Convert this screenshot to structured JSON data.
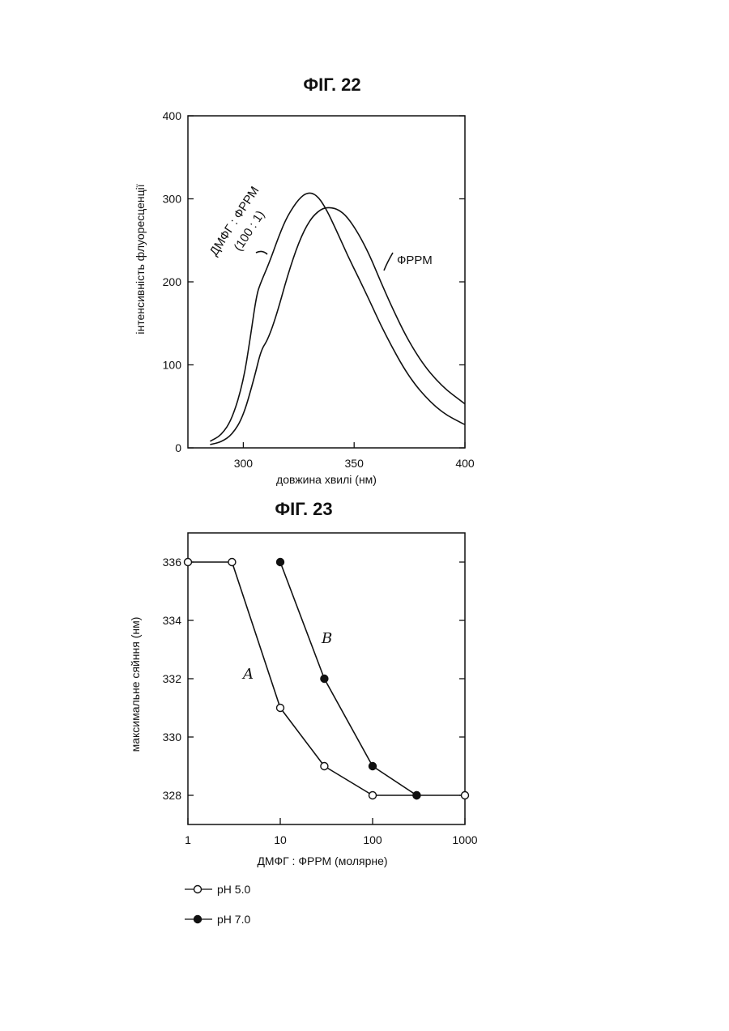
{
  "chart_data": [
    {
      "type": "line",
      "title": "ФІГ. 22",
      "xlabel": "довжина хвилі (нм)",
      "ylabel": "інтенсивність флуоресценції",
      "xlim": [
        275,
        400
      ],
      "ylim": [
        0,
        400
      ],
      "x_ticks": [
        300,
        350,
        400
      ],
      "y_ticks": [
        0,
        100,
        200,
        300,
        400
      ],
      "grid": false,
      "series": [
        {
          "name": "ДМФГ : ФРРМ (100 : 1)",
          "name_line1": "ДМФГ : ФРРМ",
          "name_line2": "(100 : 1)",
          "x": [
            285,
            290,
            295,
            300,
            303,
            306,
            308,
            312,
            316,
            320,
            325,
            329,
            333,
            337,
            342,
            347,
            352,
            357,
            362,
            367,
            372,
            377,
            382,
            387,
            392,
            397,
            400
          ],
          "y": [
            8,
            15,
            35,
            80,
            130,
            185,
            200,
            225,
            255,
            280,
            300,
            308,
            305,
            290,
            262,
            232,
            205,
            177,
            148,
            122,
            98,
            78,
            62,
            49,
            39,
            32,
            28
          ]
        },
        {
          "name": "ФРРМ",
          "x": [
            285,
            290,
            295,
            300,
            305,
            308,
            311,
            315,
            320,
            325,
            330,
            335,
            339,
            343,
            347,
            352,
            357,
            362,
            367,
            372,
            377,
            382,
            387,
            392,
            397,
            400
          ],
          "y": [
            4,
            7,
            16,
            38,
            85,
            118,
            130,
            160,
            208,
            248,
            275,
            288,
            290,
            287,
            278,
            258,
            232,
            200,
            170,
            142,
            118,
            98,
            82,
            69,
            59,
            53
          ]
        }
      ]
    },
    {
      "type": "line",
      "title": "ФІГ. 23",
      "xlabel": "ДМФГ : ФРРМ (молярне)",
      "ylabel": "максимальне сяйння (нм)",
      "x_scale": "log",
      "xlim": [
        1,
        1000
      ],
      "ylim": [
        327,
        337
      ],
      "x_ticks": [
        1,
        10,
        100,
        1000
      ],
      "x_tick_labels": [
        "1",
        "10",
        "100",
        "1000"
      ],
      "y_ticks": [
        328,
        330,
        332,
        334,
        336
      ],
      "grid": false,
      "legend": "bottom-left",
      "curve_labels": [
        "A",
        "B"
      ],
      "series": [
        {
          "name": "pH 5.0",
          "marker": "open-circle",
          "x": [
            1,
            3,
            10,
            30,
            100,
            300,
            1000
          ],
          "y": [
            336,
            336,
            331,
            329,
            328,
            328,
            328
          ]
        },
        {
          "name": "pH 7.0",
          "marker": "filled-circle",
          "x": [
            10,
            30,
            100,
            300
          ],
          "y": [
            336,
            332,
            329,
            328
          ]
        }
      ]
    }
  ]
}
